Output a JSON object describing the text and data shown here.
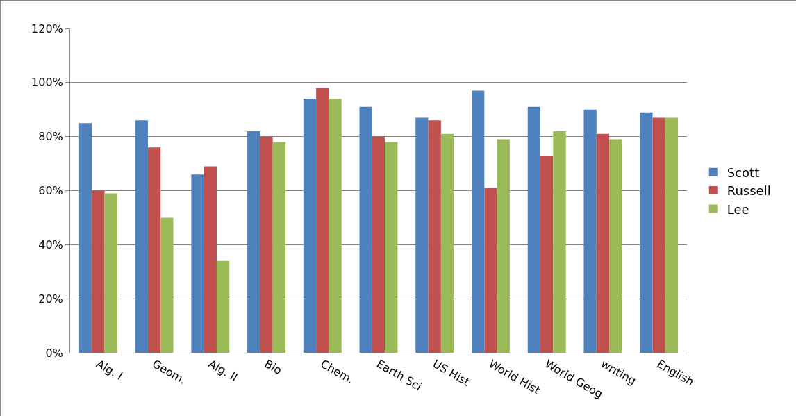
{
  "chart_data": {
    "type": "bar",
    "categories": [
      "Alg. I",
      "Geom.",
      "Alg. II",
      "Bio",
      "Chem.",
      "Earth Sci",
      "US Hist",
      "World Hist",
      "World Geog",
      "writing",
      "English"
    ],
    "series": [
      {
        "name": "Scott",
        "color": "#4f81bd",
        "values": [
          85,
          86,
          66,
          82,
          94,
          91,
          87,
          97,
          91,
          90,
          89
        ]
      },
      {
        "name": "Russell",
        "color": "#c0504d",
        "values": [
          60,
          76,
          69,
          80,
          98,
          80,
          86,
          61,
          73,
          81,
          87
        ]
      },
      {
        "name": "Lee",
        "color": "#9bbb59",
        "values": [
          59,
          50,
          34,
          78,
          94,
          78,
          81,
          79,
          82,
          79,
          87
        ]
      }
    ],
    "ylim": [
      0,
      120
    ],
    "yticks": [
      {
        "value": 0,
        "label": "0%"
      },
      {
        "value": 20,
        "label": "20%"
      },
      {
        "value": 40,
        "label": "40%"
      },
      {
        "value": 60,
        "label": "60%"
      },
      {
        "value": 80,
        "label": "80%"
      },
      {
        "value": 100,
        "label": "100%"
      },
      {
        "value": 120,
        "label": "120%"
      }
    ],
    "grid": "y",
    "legend": "right"
  }
}
